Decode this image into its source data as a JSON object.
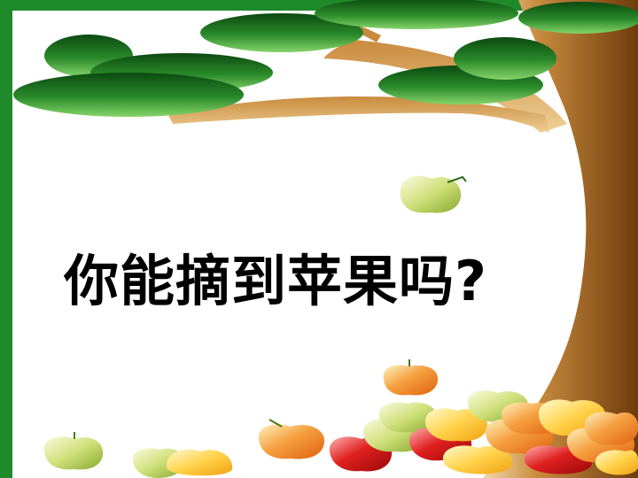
{
  "slide": {
    "title": "你能摘到苹果吗?"
  },
  "colors": {
    "frame": "#1f8a2a",
    "trunk": "#8b5a1e",
    "branch": "#e0b070",
    "leaf_dark": "#0f5a16",
    "leaf_light": "#6fc25a",
    "background": "#ffffff",
    "text": "#000000"
  },
  "icons": {
    "tree": "tree-trunk-icon",
    "leaf": "leaf-cluster-icon",
    "apple": "apple-icon"
  }
}
